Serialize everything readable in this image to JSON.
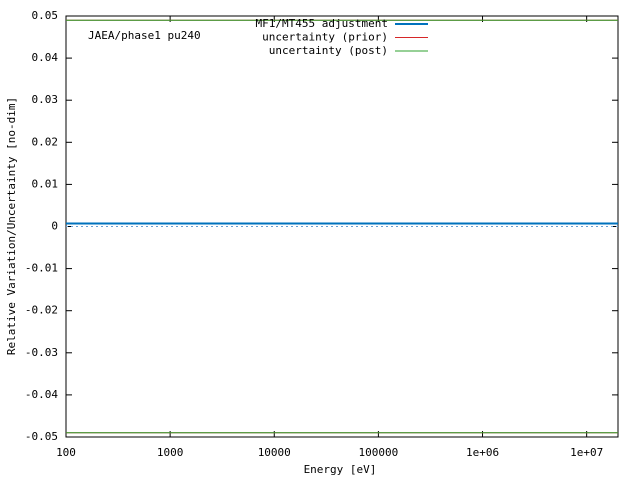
{
  "chart_data": {
    "type": "line",
    "annotation": "JAEA/phase1 pu240",
    "xlabel": "Energy [eV]",
    "ylabel": "Relative Variation/Uncertainty [no-dim]",
    "log_x": true,
    "xlim": [
      100,
      20000000
    ],
    "ylim": [
      -0.05,
      0.05
    ],
    "xticks": [
      100,
      1000,
      10000,
      100000,
      {
        "value": 1000000,
        "label": "1e+06"
      },
      {
        "value": 10000000,
        "label": "1e+07"
      }
    ],
    "yticks": [
      -0.05,
      -0.04,
      -0.03,
      -0.02,
      -0.01,
      0,
      0.01,
      0.02,
      0.03,
      0.04,
      0.05
    ],
    "zero_line": true,
    "legend": "top-center",
    "series": [
      {
        "name": "MF1/MT455 adjustment",
        "color": "#0072bd",
        "width": 2,
        "x": [
          100,
          20000000
        ],
        "values": [
          0.0007,
          0.0007
        ]
      },
      {
        "name": "uncertainty (prior)",
        "color": "#d62728",
        "width": 1,
        "x": [
          100,
          20000000
        ],
        "values": [
          0.049,
          0.049
        ],
        "minus_values": [
          -0.049,
          -0.049
        ]
      },
      {
        "name": "uncertainty (post)",
        "color": "#2ca02c",
        "width": 1,
        "x": [
          100,
          20000000
        ],
        "values": [
          0.049,
          0.049
        ],
        "minus_values": [
          -0.049,
          -0.049
        ]
      }
    ]
  }
}
